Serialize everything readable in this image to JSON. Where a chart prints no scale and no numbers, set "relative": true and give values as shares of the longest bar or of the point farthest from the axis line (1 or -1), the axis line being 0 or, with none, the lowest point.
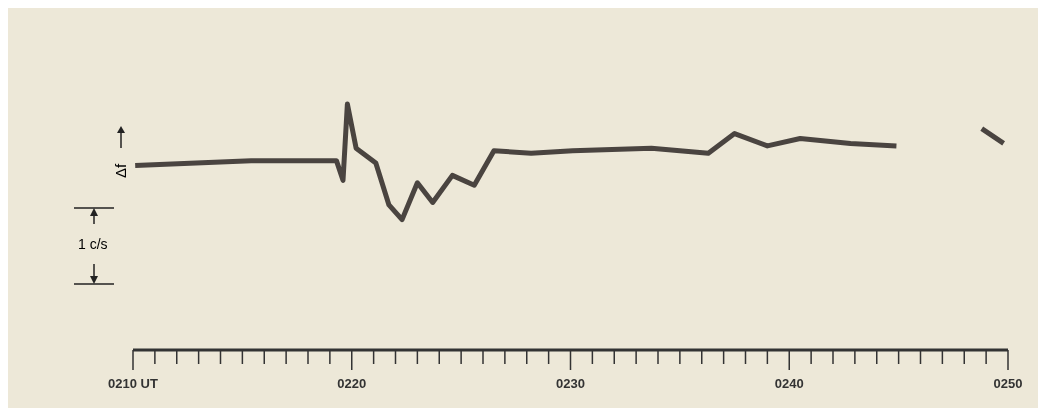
{
  "chart_data": {
    "type": "line",
    "relative": true,
    "ylabel": "Δf",
    "annotations": [
      "1 c/s"
    ],
    "x": [
      210.1,
      215.4,
      219.3,
      219.6,
      219.8,
      220.2,
      221.1,
      221.7,
      222.3,
      223,
      223.7,
      224.6,
      225.6,
      226.5,
      228.2,
      230.1,
      233.7,
      236.3,
      237.5,
      239,
      240.5,
      242.8,
      244.9,
      247,
      248.8,
      249.8
    ],
    "series": [
      {
        "color": "#4a4440",
        "values": [
          0.75,
          0.77,
          0.77,
          0.69,
          1,
          0.82,
          0.76,
          0.59,
          0.53,
          0.68,
          0.6,
          0.71,
          0.67,
          0.81,
          0.8,
          0.81,
          0.82,
          0.8,
          0.88,
          0.83,
          0.86,
          0.84,
          0.83,
          null,
          0.9,
          0.84
        ]
      }
    ],
    "xlim": [
      210,
      250
    ],
    "xticks": [
      {
        "value": 210,
        "label": "0210 UT"
      },
      {
        "value": 211,
        "label": null
      },
      {
        "value": 212,
        "label": null
      },
      {
        "value": 213,
        "label": null
      },
      {
        "value": 214,
        "label": null
      },
      {
        "value": 215,
        "label": null
      },
      {
        "value": 216,
        "label": null
      },
      {
        "value": 217,
        "label": null
      },
      {
        "value": 218,
        "label": null
      },
      {
        "value": 219,
        "label": null
      },
      {
        "value": 220,
        "label": "0220"
      },
      {
        "value": 221,
        "label": null
      },
      {
        "value": 222,
        "label": null
      },
      {
        "value": 223,
        "label": null
      },
      {
        "value": 224,
        "label": null
      },
      {
        "value": 225,
        "label": null
      },
      {
        "value": 226,
        "label": null
      },
      {
        "value": 227,
        "label": null
      },
      {
        "value": 228,
        "label": null
      },
      {
        "value": 229,
        "label": null
      },
      {
        "value": 230,
        "label": "0230"
      },
      {
        "value": 231,
        "label": null
      },
      {
        "value": 232,
        "label": null
      },
      {
        "value": 233,
        "label": null
      },
      {
        "value": 234,
        "label": null
      },
      {
        "value": 235,
        "label": null
      },
      {
        "value": 236,
        "label": null
      },
      {
        "value": 237,
        "label": null
      },
      {
        "value": 238,
        "label": null
      },
      {
        "value": 239,
        "label": null
      },
      {
        "value": 240,
        "label": "0240"
      },
      {
        "value": 241,
        "label": null
      },
      {
        "value": 242,
        "label": null
      },
      {
        "value": 243,
        "label": null
      },
      {
        "value": 244,
        "label": null
      },
      {
        "value": 245,
        "label": null
      },
      {
        "value": 246,
        "label": null
      },
      {
        "value": 247,
        "label": null
      },
      {
        "value": 248,
        "label": null
      },
      {
        "value": 249,
        "label": null
      },
      {
        "value": 250,
        "label": "0250"
      }
    ]
  }
}
